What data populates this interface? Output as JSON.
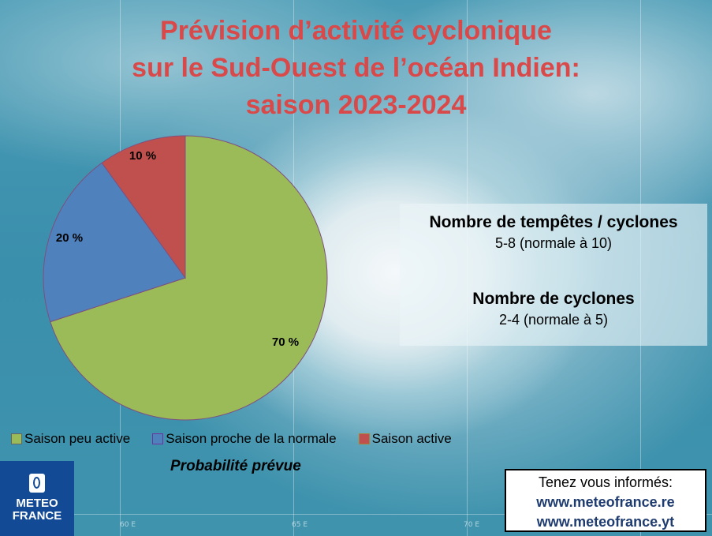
{
  "title_lines": [
    "Prévision d’activité cyclonique",
    "sur le Sud-Ouest de l’océan Indien:",
    "saison 2023-2024"
  ],
  "chart_data": {
    "type": "pie",
    "title": "Prévision d’activité cyclonique sur le Sud-Ouest de l’océan Indien: saison 2023-2024",
    "categories": [
      "Saison peu active",
      "Saison proche de la normale",
      "Saison active"
    ],
    "values": [
      70,
      20,
      10
    ],
    "data_labels": [
      "70 %",
      "20 %",
      "10 %"
    ],
    "colors": [
      "#9bbb59",
      "#4f81bd",
      "#c0504d"
    ],
    "legend_placement": "bottom",
    "xlabel": "Probabilité prévue"
  },
  "info": {
    "storms_heading": "Nombre de tempêtes / cyclones",
    "storms_value": "5-8 (normale à 10)",
    "cyclones_heading": "Nombre de cyclones",
    "cyclones_value": "2-4 (normale à 5)"
  },
  "map_labels": [
    "60 E",
    "65 E",
    "70 E"
  ],
  "logo": {
    "line1": "METEO",
    "line2": "FRANCE",
    "color": "#134a95"
  },
  "contact": {
    "heading": "Tenez vous informés:",
    "links": [
      "www.meteofrance.re",
      "www.meteofrance.yt"
    ]
  }
}
